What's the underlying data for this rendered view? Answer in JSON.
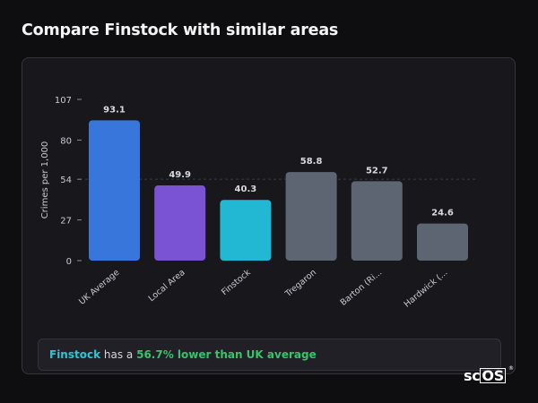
{
  "page": {
    "title": "Compare Finstock with similar areas"
  },
  "chart_data": {
    "type": "bar",
    "ylabel": "Crimes per 1,000",
    "xlabel": "",
    "ylim": [
      0,
      107
    ],
    "yticks": [
      0,
      27,
      54,
      80,
      107
    ],
    "grid_dashed_at": 54,
    "categories": [
      "UK Average",
      "Local Area",
      "Finstock",
      "Tregaron",
      "Barton (Ri...",
      "Hardwick (..."
    ],
    "values": [
      93.1,
      49.9,
      40.3,
      58.8,
      52.7,
      24.6
    ],
    "value_labels": [
      "93.1",
      "49.9",
      "40.3",
      "58.8",
      "52.7",
      "24.6"
    ],
    "colors": [
      "#3876db",
      "#7a52d4",
      "#22b8d4",
      "#5d6573",
      "#5d6573",
      "#5d6573"
    ]
  },
  "summary": {
    "place": "Finstock",
    "middle": " has a ",
    "highlight": "56.7% lower than UK average"
  },
  "logo": {
    "prefix": "sc",
    "boxed": "OS",
    "mark": "®"
  }
}
